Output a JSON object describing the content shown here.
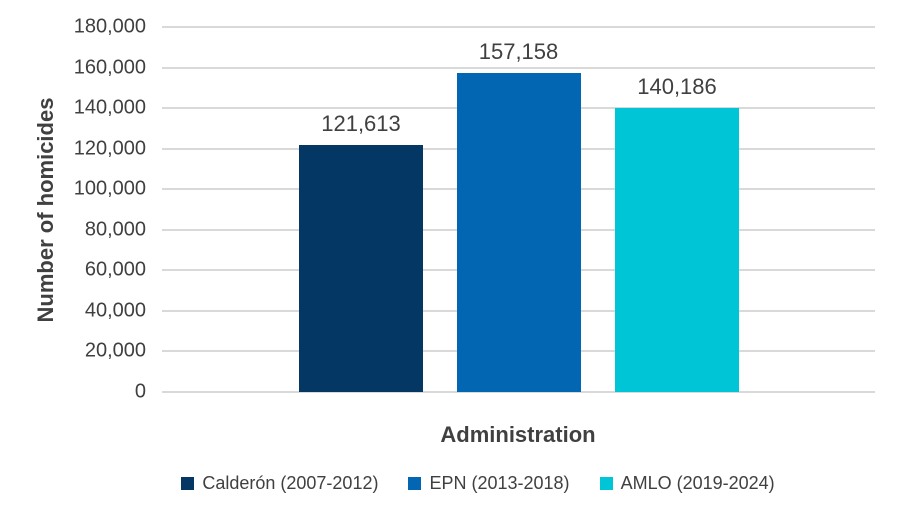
{
  "chart_data": {
    "type": "bar",
    "title": "",
    "xlabel": "Administration",
    "ylabel": "Number of homicides",
    "categories": [
      "Calderón (2007-2012)",
      "EPN (2013-2018)",
      "AMLO (2019-2024)"
    ],
    "values": [
      121613,
      157158,
      140186
    ],
    "data_labels": [
      "121,613",
      "157,158",
      "140,186"
    ],
    "ylim": [
      0,
      180000
    ],
    "ytick_step": 20000,
    "ytick_labels": [
      "0",
      "20,000",
      "40,000",
      "60,000",
      "80,000",
      "100,000",
      "120,000",
      "140,000",
      "160,000",
      "180,000"
    ],
    "grid": "horizontal",
    "legend_position": "bottom",
    "legend": [
      {
        "label": "Calderón (2007-2012)",
        "color": "#043763"
      },
      {
        "label": "EPN (2013-2018)",
        "color": "#0266b3"
      },
      {
        "label": "AMLO (2019-2024)",
        "color": "#00c5d6"
      }
    ],
    "colors": {
      "bar_calderon": "#043763",
      "bar_epn": "#0266b3",
      "bar_amlo": "#00c5d6",
      "gridline": "#d9d9d9",
      "text": "#404040"
    }
  }
}
